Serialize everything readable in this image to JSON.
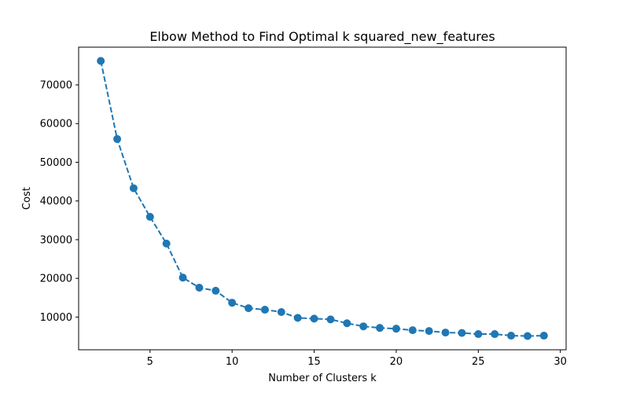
{
  "chart_data": {
    "type": "line",
    "title": "Elbow Method to Find Optimal k squared_new_features",
    "xlabel": "Number of Clusters k",
    "ylabel": "Cost",
    "x": [
      2,
      3,
      4,
      5,
      6,
      7,
      8,
      9,
      10,
      11,
      12,
      13,
      14,
      15,
      16,
      17,
      18,
      19,
      20,
      21,
      22,
      23,
      24,
      25,
      26,
      27,
      28,
      29
    ],
    "series": [
      {
        "values": [
          76200,
          56000,
          43300,
          35900,
          29000,
          20200,
          17600,
          16800,
          13700,
          12300,
          11900,
          11300,
          9800,
          9600,
          9400,
          8400,
          7600,
          7200,
          7000,
          6600,
          6400,
          6000,
          5900,
          5600,
          5600,
          5200,
          5100,
          5200
        ],
        "color": "#1f77b4",
        "line_style": "dashed",
        "marker": "circle"
      }
    ],
    "xlim": [
      0.65,
      30.35
    ],
    "ylim": [
      1550,
      79750
    ],
    "xticks": [
      5,
      10,
      15,
      20,
      25,
      30
    ],
    "xtick_labels": [
      "5",
      "10",
      "15",
      "20",
      "25",
      "30"
    ],
    "yticks": [
      10000,
      20000,
      30000,
      40000,
      50000,
      60000,
      70000
    ],
    "ytick_labels": [
      "10000",
      "20000",
      "30000",
      "40000",
      "50000",
      "60000",
      "70000"
    ],
    "grid": false,
    "legend": "none"
  }
}
